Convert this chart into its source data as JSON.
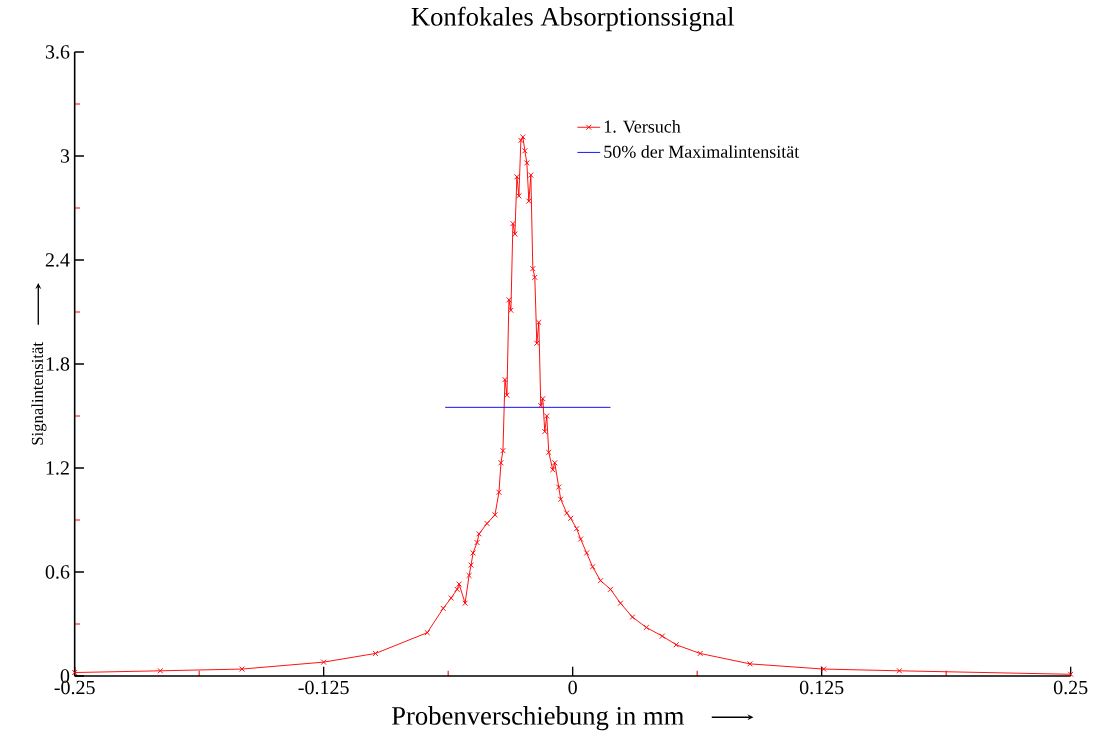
{
  "chart_data": {
    "type": "line",
    "title": "Konfokales Absorptionssignal",
    "xlabel": "Probenverschiebung in mm",
    "ylabel": "Signalintensität",
    "xlim": [
      -0.25,
      0.25
    ],
    "xticks": [
      -0.25,
      -0.125,
      0,
      0.125,
      0.25
    ],
    "ylim": [
      0,
      3.6
    ],
    "yticks": [
      0,
      0.6,
      1.2,
      1.8,
      2.4,
      3,
      3.6
    ],
    "grid": false,
    "legend": "top right",
    "marker": "cross",
    "series": [
      {
        "name": "1. Versuch",
        "color": "#ff0000",
        "x": [
          -0.25,
          -0.207,
          -0.166,
          -0.125,
          -0.099,
          -0.073,
          -0.065,
          -0.061,
          -0.058,
          -0.057,
          -0.054,
          -0.052,
          -0.051,
          -0.05,
          -0.048,
          -0.047,
          -0.043,
          -0.039,
          -0.037,
          -0.036,
          -0.035,
          -0.034,
          -0.033,
          -0.032,
          -0.031,
          -0.03,
          -0.029,
          -0.028,
          -0.027,
          -0.026,
          -0.025,
          -0.024,
          -0.023,
          -0.022,
          -0.021,
          -0.02,
          -0.019,
          -0.018,
          -0.017,
          -0.016,
          -0.015,
          -0.014,
          -0.013,
          -0.012,
          -0.01,
          -0.009,
          -0.007,
          -0.006,
          -0.003,
          -0.001,
          0.002,
          0.004,
          0.007,
          0.01,
          0.014,
          0.019,
          0.024,
          0.03,
          0.037,
          0.045,
          0.052,
          0.064,
          0.089,
          0.126,
          0.164,
          0.25
        ],
        "values": [
          0.02,
          0.03,
          0.04,
          0.08,
          0.13,
          0.25,
          0.39,
          0.45,
          0.5,
          0.53,
          0.42,
          0.58,
          0.64,
          0.71,
          0.77,
          0.82,
          0.88,
          0.93,
          1.06,
          1.23,
          1.3,
          1.71,
          1.62,
          2.17,
          2.11,
          2.61,
          2.55,
          2.88,
          2.77,
          3.09,
          3.11,
          3.03,
          2.96,
          2.74,
          2.89,
          2.35,
          2.3,
          1.92,
          2.04,
          1.56,
          1.6,
          1.41,
          1.5,
          1.29,
          1.19,
          1.23,
          1.09,
          1.02,
          0.94,
          0.91,
          0.85,
          0.79,
          0.71,
          0.63,
          0.55,
          0.5,
          0.42,
          0.34,
          0.28,
          0.23,
          0.18,
          0.13,
          0.07,
          0.04,
          0.03,
          0.01
        ]
      },
      {
        "name": "50% der Maximalintensität",
        "color": "#0000ff",
        "marker": "none",
        "x": [
          -0.064,
          0.019
        ],
        "values": [
          1.55,
          1.55
        ]
      }
    ]
  }
}
